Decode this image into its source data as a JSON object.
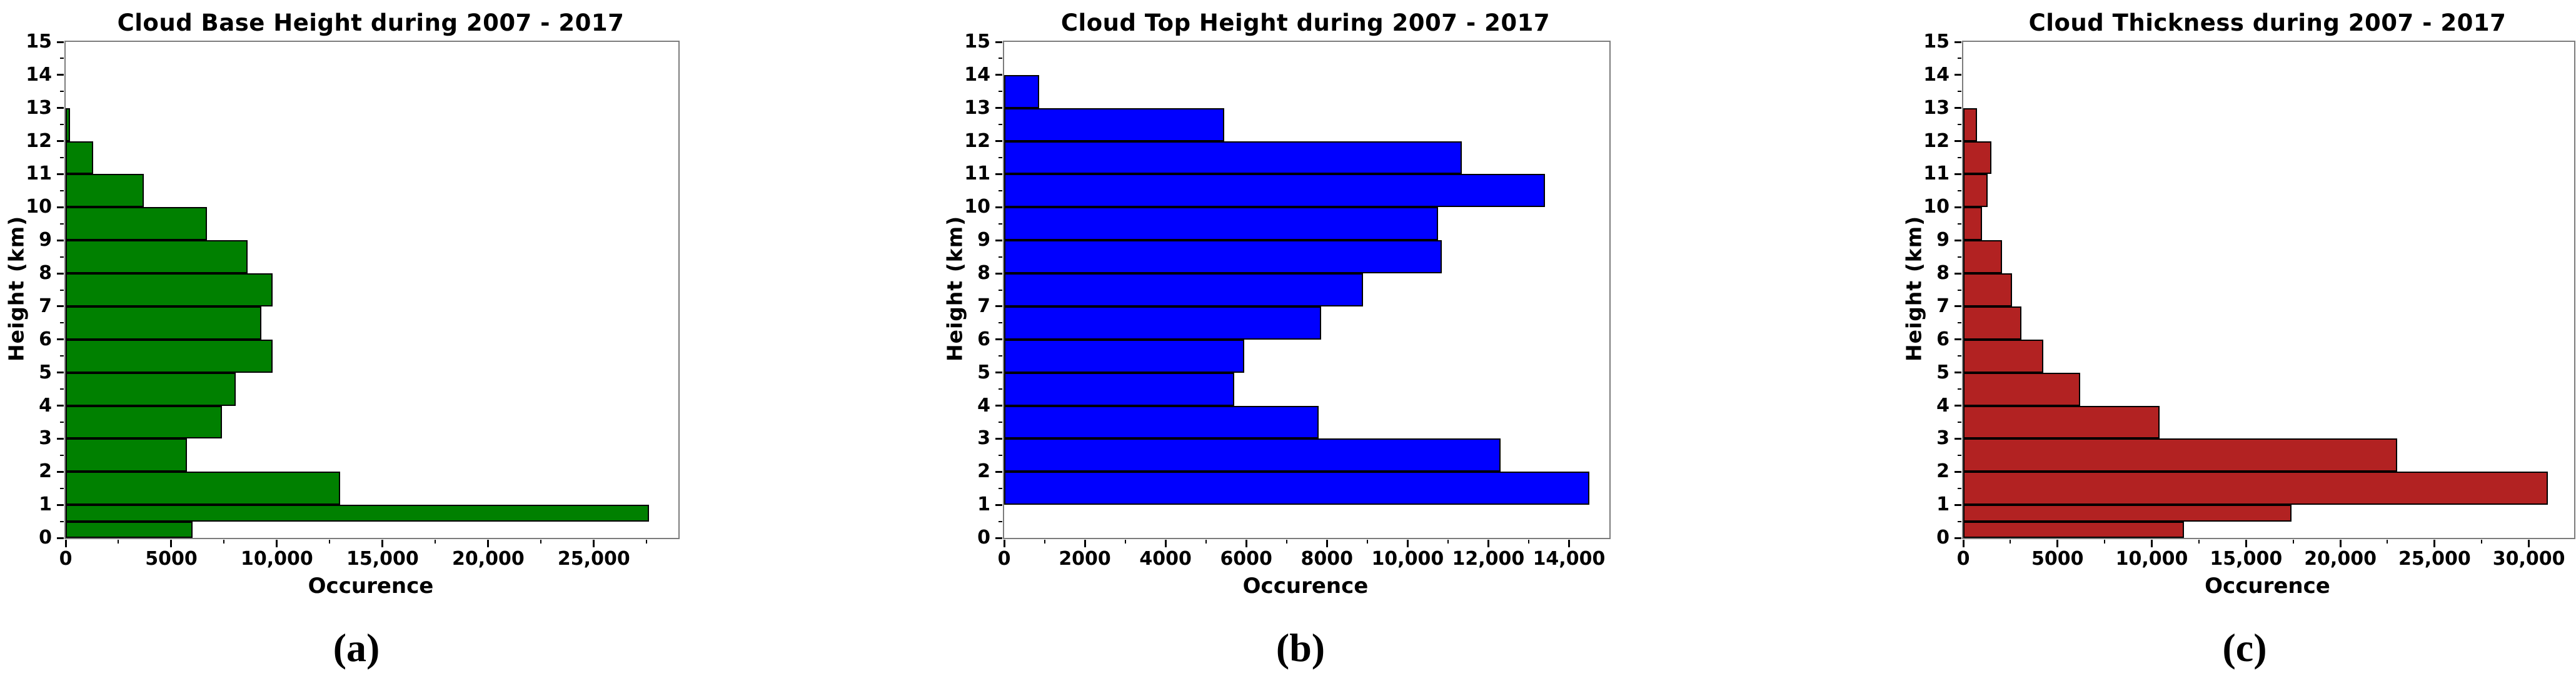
{
  "figure": {
    "background": "#ffffff",
    "caption_labels": [
      "(a)",
      "(b)",
      "(c)"
    ]
  },
  "chart_data": [
    {
      "type": "bar",
      "orientation": "horizontal",
      "title": "Cloud Base Height during 2007 - 2017",
      "caption": "(a)",
      "xlabel": "Occurence",
      "ylabel": "Height (km)",
      "bar_color": "#008000",
      "bar_edge_color": "#000000",
      "xlim": [
        0,
        29000
      ],
      "ylim": [
        0,
        15
      ],
      "grid": false,
      "legend": null,
      "yticks": [
        "0",
        "1",
        "2",
        "3",
        "4",
        "5",
        "6",
        "7",
        "8",
        "9",
        "10",
        "11",
        "12",
        "13",
        "14",
        "15"
      ],
      "xticks": [
        {
          "value": 0,
          "label": "0"
        },
        {
          "value": 5000,
          "label": "5000"
        },
        {
          "value": 10000,
          "label": "10,000"
        },
        {
          "value": 15000,
          "label": "15,000"
        },
        {
          "value": 20000,
          "label": "20,000"
        },
        {
          "value": 25000,
          "label": "25,000"
        }
      ],
      "minor_xtick_step": 2500,
      "bars": [
        {
          "height_km": [
            0,
            0.5
          ],
          "occurrence": 6000
        },
        {
          "height_km": [
            0.5,
            1
          ],
          "occurrence": 27600
        },
        {
          "height_km": [
            1,
            2
          ],
          "occurrence": 13000
        },
        {
          "height_km": [
            2,
            3
          ],
          "occurrence": 5750
        },
        {
          "height_km": [
            3,
            4
          ],
          "occurrence": 7400
        },
        {
          "height_km": [
            4,
            5
          ],
          "occurrence": 8050
        },
        {
          "height_km": [
            5,
            6
          ],
          "occurrence": 9800
        },
        {
          "height_km": [
            6,
            7
          ],
          "occurrence": 9250
        },
        {
          "height_km": [
            7,
            8
          ],
          "occurrence": 9800
        },
        {
          "height_km": [
            8,
            9
          ],
          "occurrence": 8600
        },
        {
          "height_km": [
            9,
            10
          ],
          "occurrence": 6700
        },
        {
          "height_km": [
            10,
            11
          ],
          "occurrence": 3700
        },
        {
          "height_km": [
            11,
            12
          ],
          "occurrence": 1300
        },
        {
          "height_km": [
            12,
            13
          ],
          "occurrence": 200
        }
      ]
    },
    {
      "type": "bar",
      "orientation": "horizontal",
      "title": "Cloud Top Height during 2007 - 2017",
      "caption": "(b)",
      "xlabel": "Occurence",
      "ylabel": "Height (km)",
      "bar_color": "#0000ff",
      "bar_edge_color": "#000000",
      "xlim": [
        0,
        15000
      ],
      "ylim": [
        0,
        15
      ],
      "grid": false,
      "legend": null,
      "yticks": [
        "0",
        "1",
        "2",
        "3",
        "4",
        "5",
        "6",
        "7",
        "8",
        "9",
        "10",
        "11",
        "12",
        "13",
        "14",
        "15"
      ],
      "xticks": [
        {
          "value": 0,
          "label": "0"
        },
        {
          "value": 2000,
          "label": "2000"
        },
        {
          "value": 4000,
          "label": "4000"
        },
        {
          "value": 6000,
          "label": "6000"
        },
        {
          "value": 8000,
          "label": "8000"
        },
        {
          "value": 10000,
          "label": "10,000"
        },
        {
          "value": 12000,
          "label": "12,000"
        },
        {
          "value": 14000,
          "label": "14,000"
        }
      ],
      "minor_xtick_step": 1000,
      "bars": [
        {
          "height_km": [
            1,
            2
          ],
          "occurrence": 14500
        },
        {
          "height_km": [
            2,
            3
          ],
          "occurrence": 12300
        },
        {
          "height_km": [
            3,
            4
          ],
          "occurrence": 7800
        },
        {
          "height_km": [
            4,
            5
          ],
          "occurrence": 5700
        },
        {
          "height_km": [
            5,
            6
          ],
          "occurrence": 5950
        },
        {
          "height_km": [
            6,
            7
          ],
          "occurrence": 7850
        },
        {
          "height_km": [
            7,
            8
          ],
          "occurrence": 8900
        },
        {
          "height_km": [
            8,
            9
          ],
          "occurrence": 10850
        },
        {
          "height_km": [
            9,
            10
          ],
          "occurrence": 10750
        },
        {
          "height_km": [
            10,
            11
          ],
          "occurrence": 13400
        },
        {
          "height_km": [
            11,
            12
          ],
          "occurrence": 11350
        },
        {
          "height_km": [
            12,
            13
          ],
          "occurrence": 5450
        },
        {
          "height_km": [
            13,
            14
          ],
          "occurrence": 870
        }
      ]
    },
    {
      "type": "bar",
      "orientation": "horizontal",
      "title": "Cloud Thickness during 2007 - 2017",
      "caption": "(c)",
      "xlabel": "Occurence",
      "ylabel": "Height (km)",
      "bar_color": "#b22222",
      "bar_edge_color": "#000000",
      "xlim": [
        0,
        32400
      ],
      "ylim": [
        0,
        15
      ],
      "grid": false,
      "legend": null,
      "yticks": [
        "0",
        "1",
        "2",
        "3",
        "4",
        "5",
        "6",
        "7",
        "8",
        "9",
        "10",
        "11",
        "12",
        "13",
        "14",
        "15"
      ],
      "xticks": [
        {
          "value": 0,
          "label": "0"
        },
        {
          "value": 5000,
          "label": "5000"
        },
        {
          "value": 10000,
          "label": "10,000"
        },
        {
          "value": 15000,
          "label": "15,000"
        },
        {
          "value": 20000,
          "label": "20,000"
        },
        {
          "value": 25000,
          "label": "25,000"
        },
        {
          "value": 30000,
          "label": "30,000"
        }
      ],
      "minor_xtick_step": 2500,
      "bars": [
        {
          "height_km": [
            0,
            0.5
          ],
          "occurrence": 11700
        },
        {
          "height_km": [
            0.5,
            1
          ],
          "occurrence": 17400
        },
        {
          "height_km": [
            1,
            2
          ],
          "occurrence": 31000
        },
        {
          "height_km": [
            2,
            3
          ],
          "occurrence": 23000
        },
        {
          "height_km": [
            3,
            4
          ],
          "occurrence": 10400
        },
        {
          "height_km": [
            4,
            5
          ],
          "occurrence": 6200
        },
        {
          "height_km": [
            5,
            6
          ],
          "occurrence": 4250
        },
        {
          "height_km": [
            6,
            7
          ],
          "occurrence": 3100
        },
        {
          "height_km": [
            7,
            8
          ],
          "occurrence": 2600
        },
        {
          "height_km": [
            8,
            9
          ],
          "occurrence": 2050
        },
        {
          "height_km": [
            9,
            10
          ],
          "occurrence": 1000
        },
        {
          "height_km": [
            10,
            11
          ],
          "occurrence": 1300
        },
        {
          "height_km": [
            11,
            12
          ],
          "occurrence": 1500
        },
        {
          "height_km": [
            12,
            13
          ],
          "occurrence": 730
        }
      ]
    }
  ]
}
